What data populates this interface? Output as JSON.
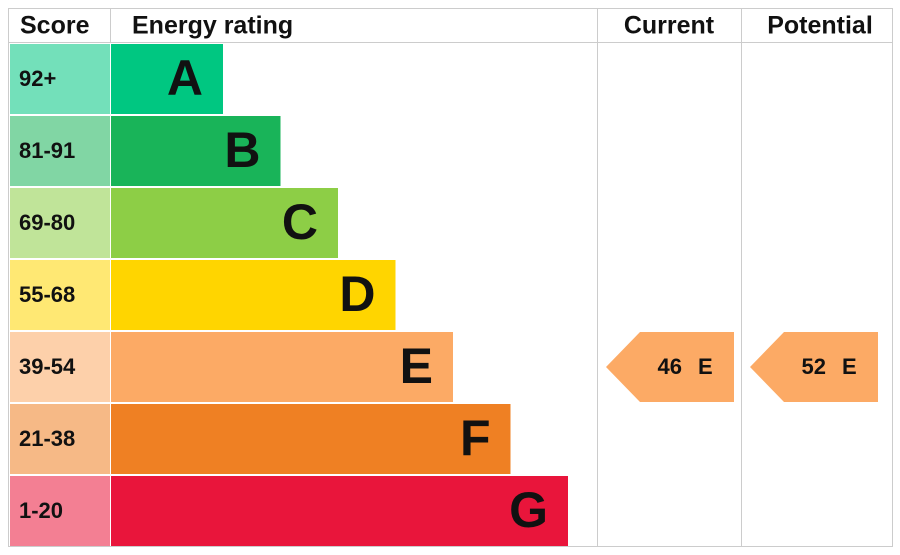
{
  "header": {
    "score": "Score",
    "rating": "Energy rating",
    "current": "Current",
    "potential": "Potential"
  },
  "bands": [
    {
      "score": "92+",
      "letter": "A",
      "color": "#00c781"
    },
    {
      "score": "81-91",
      "letter": "B",
      "color": "#19b459"
    },
    {
      "score": "69-80",
      "letter": "C",
      "color": "#8dce46"
    },
    {
      "score": "55-68",
      "letter": "D",
      "color": "#ffd500"
    },
    {
      "score": "39-54",
      "letter": "E",
      "color": "#fcaa65"
    },
    {
      "score": "21-38",
      "letter": "F",
      "color": "#ef8023"
    },
    {
      "score": "1-20",
      "letter": "G",
      "color": "#e9153b"
    }
  ],
  "current": {
    "value": 46,
    "letter": "E"
  },
  "potential": {
    "value": 52,
    "letter": "E"
  }
}
